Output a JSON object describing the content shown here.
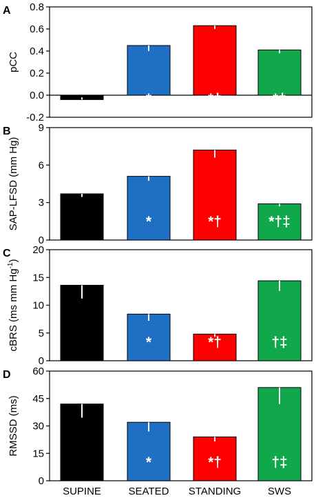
{
  "chart_data": [
    {
      "type": "bar",
      "panel_label": "A",
      "ylabel": "pCC",
      "ylabel_super": "",
      "ylabel_tail": "",
      "ylim": [
        -0.2,
        0.8
      ],
      "yticks": [
        "-0.2",
        "0.0",
        "0.2",
        "0.4",
        "0.6",
        "0.8"
      ],
      "categories": [
        "SUPINE",
        "SEATED",
        "STANDING",
        "SWS"
      ],
      "values": [
        -0.04,
        0.45,
        0.63,
        0.41
      ],
      "errors": [
        0.02,
        0.05,
        0.03,
        0.03
      ],
      "annotations": [
        "",
        "*",
        "*†",
        "*‡"
      ]
    },
    {
      "type": "bar",
      "panel_label": "B",
      "ylabel": "SAP-LFSD (mm Hg)",
      "ylabel_super": "",
      "ylabel_tail": "",
      "ylim": [
        0,
        9
      ],
      "yticks": [
        "0",
        "3",
        "6",
        "9"
      ],
      "categories": [
        "SUPINE",
        "SEATED",
        "STANDING",
        "SWS"
      ],
      "values": [
        3.7,
        5.1,
        7.2,
        2.9
      ],
      "errors": [
        0.25,
        0.35,
        0.6,
        0.2
      ],
      "annotations": [
        "",
        "*",
        "*†",
        "*†‡"
      ]
    },
    {
      "type": "bar",
      "panel_label": "C",
      "ylabel": "cBRS (ms mm Hg",
      "ylabel_super": "-1",
      "ylabel_tail": ")",
      "ylim": [
        0,
        20
      ],
      "yticks": [
        "0",
        "5",
        "10",
        "15",
        "20"
      ],
      "categories": [
        "SUPINE",
        "SEATED",
        "STANDING",
        "SWS"
      ],
      "values": [
        13.6,
        8.4,
        4.8,
        14.4
      ],
      "errors": [
        2.4,
        1.2,
        0.5,
        1.8
      ],
      "annotations": [
        "",
        "*",
        "*†",
        "†‡"
      ]
    },
    {
      "type": "bar",
      "panel_label": "D",
      "ylabel": "RMSSD (ms)",
      "ylabel_super": "",
      "ylabel_tail": "",
      "ylim": [
        0,
        60
      ],
      "yticks": [
        "0",
        "15",
        "30",
        "45",
        "60"
      ],
      "categories": [
        "SUPINE",
        "SEATED",
        "STANDING",
        "SWS"
      ],
      "values": [
        42,
        32,
        24,
        51
      ],
      "errors": [
        7.5,
        5,
        2.5,
        9
      ],
      "annotations": [
        "",
        "*",
        "*†",
        "†‡"
      ]
    }
  ],
  "colors": [
    "#000000",
    "#1f6fc5",
    "#ff0000",
    "#11a84b"
  ],
  "category_labels": [
    "SUPINE",
    "SEATED",
    "STANDING",
    "SWS"
  ]
}
